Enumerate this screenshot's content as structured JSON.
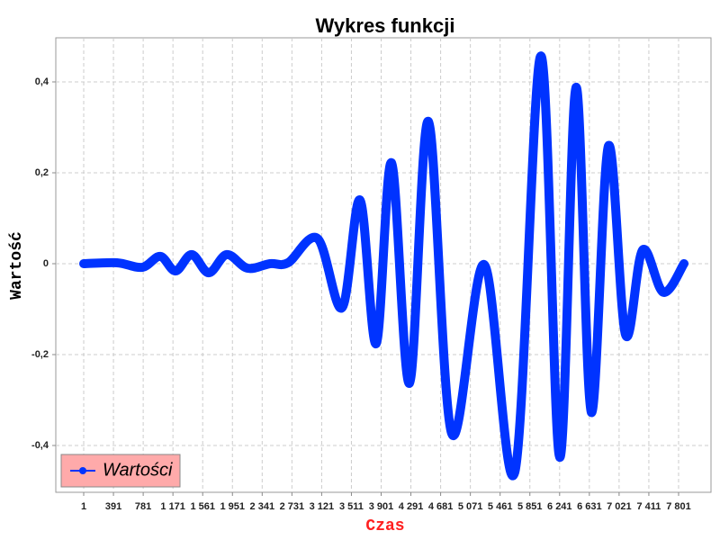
{
  "chart_data": {
    "type": "line",
    "title": "Wykres funkcji",
    "x_label": "Czas",
    "y_label": "Wartość",
    "x": [
      1,
      438,
      768,
      1004,
      1205,
      1417,
      1641,
      1877,
      2149,
      2444,
      2680,
      3069,
      3388,
      3624,
      3836,
      4037,
      4273,
      4521,
      4827,
      5252,
      5653,
      5995,
      6243,
      6456,
      6656,
      6881,
      7105,
      7329,
      7601,
      7872
    ],
    "series": [
      {
        "name": "Wartości",
        "color": "#0033ff",
        "values": [
          0,
          0.002,
          -0.008,
          0.016,
          -0.016,
          0.02,
          -0.02,
          0.02,
          -0.01,
          0,
          0.002,
          0.055,
          -0.097,
          0.14,
          -0.176,
          0.222,
          -0.263,
          0.313,
          -0.374,
          -0.002,
          -0.459,
          0.457,
          -0.426,
          0.388,
          -0.327,
          0.259,
          -0.156,
          0.03,
          -0.063,
          0
        ]
      }
    ],
    "xlim": [
      -365,
      8226
    ],
    "ylim": [
      -0.503,
      0.497
    ],
    "xticks": [
      1,
      391,
      781,
      {
        "value": 1171,
        "label": "1 171"
      },
      {
        "value": 1561,
        "label": "1 561"
      },
      {
        "value": 1951,
        "label": "1 951"
      },
      {
        "value": 2341,
        "label": "2 341"
      },
      {
        "value": 2731,
        "label": "2 731"
      },
      {
        "value": 3121,
        "label": "3 121"
      },
      {
        "value": 3511,
        "label": "3 511"
      },
      {
        "value": 3901,
        "label": "3 901"
      },
      {
        "value": 4291,
        "label": "4 291"
      },
      {
        "value": 4681,
        "label": "4 681"
      },
      {
        "value": 5071,
        "label": "5 071"
      },
      {
        "value": 5461,
        "label": "5 461"
      },
      {
        "value": 5851,
        "label": "5 851"
      },
      {
        "value": 6241,
        "label": "6 241"
      },
      {
        "value": 6631,
        "label": "6 631"
      },
      {
        "value": 7021,
        "label": "7 021"
      },
      {
        "value": 7411,
        "label": "7 411"
      },
      {
        "value": 7801,
        "label": "7 801"
      }
    ],
    "yticks": [
      {
        "value": -0.4,
        "label": "-0,4"
      },
      {
        "value": -0.2,
        "label": "-0,2"
      },
      0,
      {
        "value": 0.2,
        "label": "0,2"
      },
      {
        "value": 0.4,
        "label": "0,4"
      }
    ],
    "grid": true,
    "legend_position": "lower left"
  }
}
